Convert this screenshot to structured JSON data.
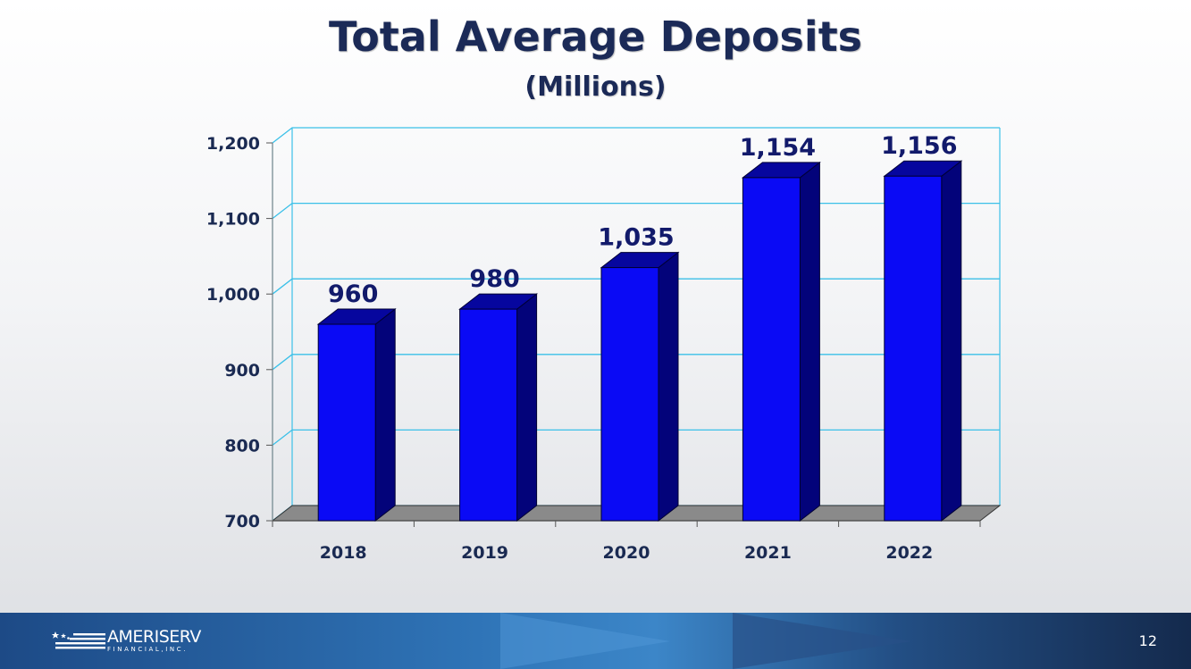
{
  "slide": {
    "title": "Total Average Deposits",
    "subtitle": "(Millions)",
    "page_number": "12"
  },
  "footer": {
    "logo_text": "AMERISERV",
    "logo_subtext": "FINANCIAL,INC."
  },
  "colors": {
    "bar_front": "#0a0af5",
    "bar_top": "#06069e",
    "bar_side": "#03037a",
    "gridline": "#3bc0e8",
    "floor": "#8a8a8a",
    "title": "#1b2a57"
  },
  "chart_data": {
    "type": "bar",
    "style": "3d-column",
    "categories": [
      "2018",
      "2019",
      "2020",
      "2021",
      "2022"
    ],
    "values": [
      960,
      980,
      1035,
      1154,
      1156
    ],
    "data_labels": [
      "960",
      "980",
      "1,035",
      "1,154",
      "1,156"
    ],
    "y_ticks": [
      "700",
      "800",
      "900",
      "1,000",
      "1,100",
      "1,200"
    ],
    "ylim": [
      700,
      1200
    ],
    "grid": true,
    "legend": "none",
    "title": "Total Average Deposits",
    "subtitle": "(Millions)"
  }
}
